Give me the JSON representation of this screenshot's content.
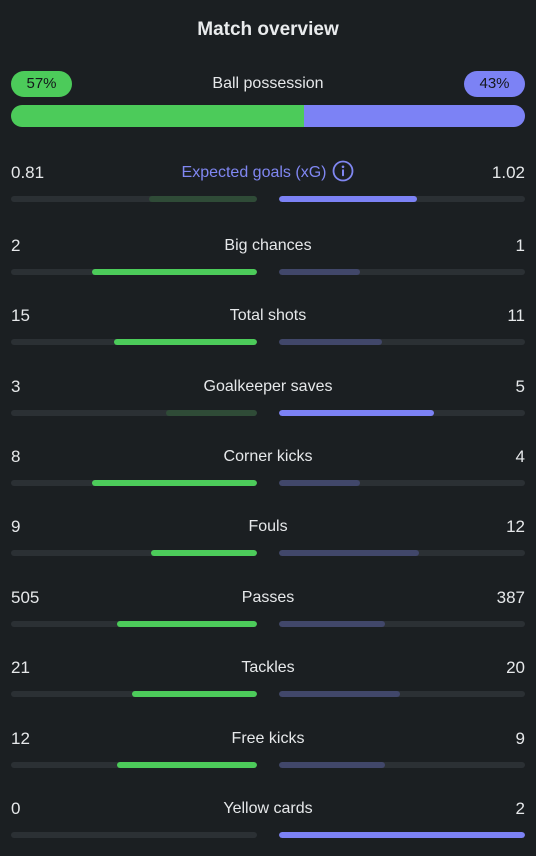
{
  "title": "Match overview",
  "possession": {
    "label": "Ball possession",
    "home": "57%",
    "away": "43%",
    "home_fraction": 0.57
  },
  "colors": {
    "home": "#4ccb5a",
    "away": "#7c82f5",
    "home_dim": "#2f4b37",
    "away_dim": "#41476a"
  },
  "stats": [
    {
      "label": "Expected goals (xG)",
      "home": "0.81",
      "away": "1.02",
      "home_fill": 0.44,
      "away_fill": 0.56,
      "leader": "away",
      "info_icon": "info-icon"
    },
    {
      "label": "Big chances",
      "home": "2",
      "away": "1",
      "home_fill": 0.67,
      "away_fill": 0.33,
      "leader": "home"
    },
    {
      "label": "Total shots",
      "home": "15",
      "away": "11",
      "home_fill": 0.58,
      "away_fill": 0.42,
      "leader": "home"
    },
    {
      "label": "Goalkeeper saves",
      "home": "3",
      "away": "5",
      "home_fill": 0.37,
      "away_fill": 0.63,
      "leader": "away"
    },
    {
      "label": "Corner kicks",
      "home": "8",
      "away": "4",
      "home_fill": 0.67,
      "away_fill": 0.33,
      "leader": "home"
    },
    {
      "label": "Fouls",
      "home": "9",
      "away": "12",
      "home_fill": 0.43,
      "away_fill": 0.57,
      "leader": "home"
    },
    {
      "label": "Passes",
      "home": "505",
      "away": "387",
      "home_fill": 0.57,
      "away_fill": 0.43,
      "leader": "home"
    },
    {
      "label": "Tackles",
      "home": "21",
      "away": "20",
      "home_fill": 0.51,
      "away_fill": 0.49,
      "leader": "home"
    },
    {
      "label": "Free kicks",
      "home": "12",
      "away": "9",
      "home_fill": 0.57,
      "away_fill": 0.43,
      "leader": "home"
    },
    {
      "label": "Yellow cards",
      "home": "0",
      "away": "2",
      "home_fill": 0.0,
      "away_fill": 1.0,
      "leader": "away"
    }
  ]
}
